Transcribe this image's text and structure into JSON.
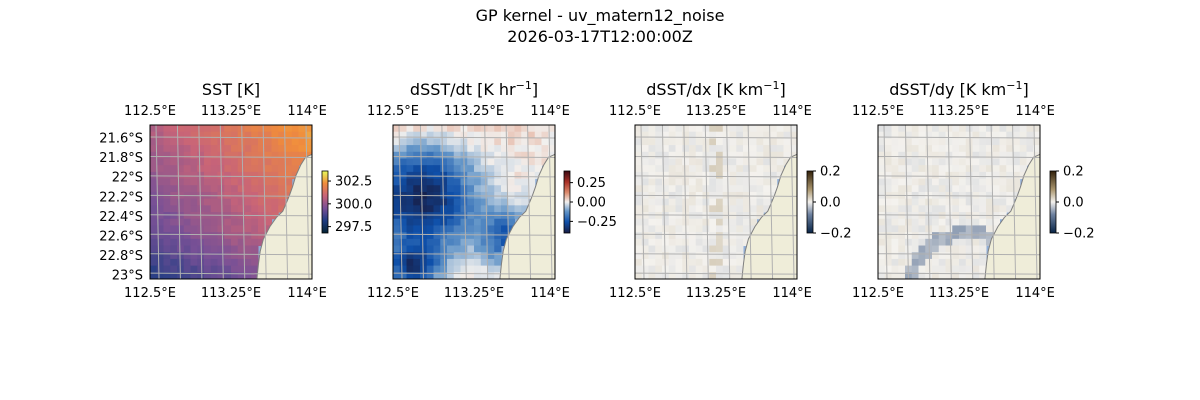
{
  "figure": {
    "title_line1": "GP kernel - uv_matern12_noise",
    "title_line2": "2026-03-17T12:00:00Z"
  },
  "colors": {
    "land": "#efedd9",
    "ocean_edge": "#8faed7",
    "coast": "#7f7f7f",
    "grid": "#b0b0b0"
  },
  "chart_data": [
    {
      "type": "heatmap",
      "title": "SST [K]",
      "variable": "SST",
      "xlim": [
        112.5,
        114.05
      ],
      "ylim": [
        -23.05,
        -21.5
      ],
      "x_ticks": [
        "112.5°E",
        "113.25°E",
        "114°E"
      ],
      "y_ticks": [
        "21.6°S",
        "21.8°S",
        "22°S",
        "22.2°S",
        "22.4°S",
        "22.6°S",
        "22.8°S",
        "23°S"
      ],
      "show_y_ticks": true,
      "colorbar": {
        "ticks": [
          "302.5",
          "300.0",
          "297.5"
        ],
        "tick_values": [
          302.5,
          300.0,
          297.5
        ],
        "range": [
          296.8,
          303.6
        ],
        "colormap": "thermal"
      },
      "grid": true
    },
    {
      "type": "heatmap",
      "title_main": "dSST/dt [K hr",
      "title_sup": "−1",
      "title_close": "]",
      "variable": "dSST/dt",
      "xlim": [
        112.5,
        114.05
      ],
      "ylim": [
        -23.05,
        -21.5
      ],
      "x_ticks": [
        "112.5°E",
        "113.25°E",
        "114°E"
      ],
      "show_y_ticks": false,
      "colorbar": {
        "ticks": [
          "0.25",
          "0.00",
          "−0.25"
        ],
        "tick_values": [
          0.25,
          0.0,
          -0.25
        ],
        "range": [
          -0.4,
          0.4
        ],
        "colormap": "balance"
      },
      "grid": true
    },
    {
      "type": "heatmap",
      "title_main": "dSST/dx [K km",
      "title_sup": "−1",
      "title_close": "]",
      "variable": "dSST/dx",
      "xlim": [
        112.5,
        114.05
      ],
      "ylim": [
        -23.05,
        -21.5
      ],
      "x_ticks": [
        "112.5°E",
        "113.25°E",
        "114°E"
      ],
      "show_y_ticks": false,
      "colorbar": {
        "ticks": [
          "0.2",
          "0.0",
          "−0.2"
        ],
        "tick_values": [
          0.2,
          0.0,
          -0.2
        ],
        "range": [
          -0.2,
          0.2
        ],
        "colormap": "diff"
      },
      "grid": true
    },
    {
      "type": "heatmap",
      "title_main": "dSST/dy [K km",
      "title_sup": "−1",
      "title_close": "]",
      "variable": "dSST/dy",
      "xlim": [
        112.5,
        114.05
      ],
      "ylim": [
        -23.05,
        -21.5
      ],
      "x_ticks": [
        "112.5°E",
        "113.25°E",
        "114°E"
      ],
      "show_y_ticks": false,
      "colorbar": {
        "ticks": [
          "0.2",
          "0.0",
          "−0.2"
        ],
        "tick_values": [
          0.2,
          0.0,
          -0.2
        ],
        "range": [
          -0.2,
          0.2
        ],
        "colormap": "diff"
      },
      "grid": true
    }
  ]
}
